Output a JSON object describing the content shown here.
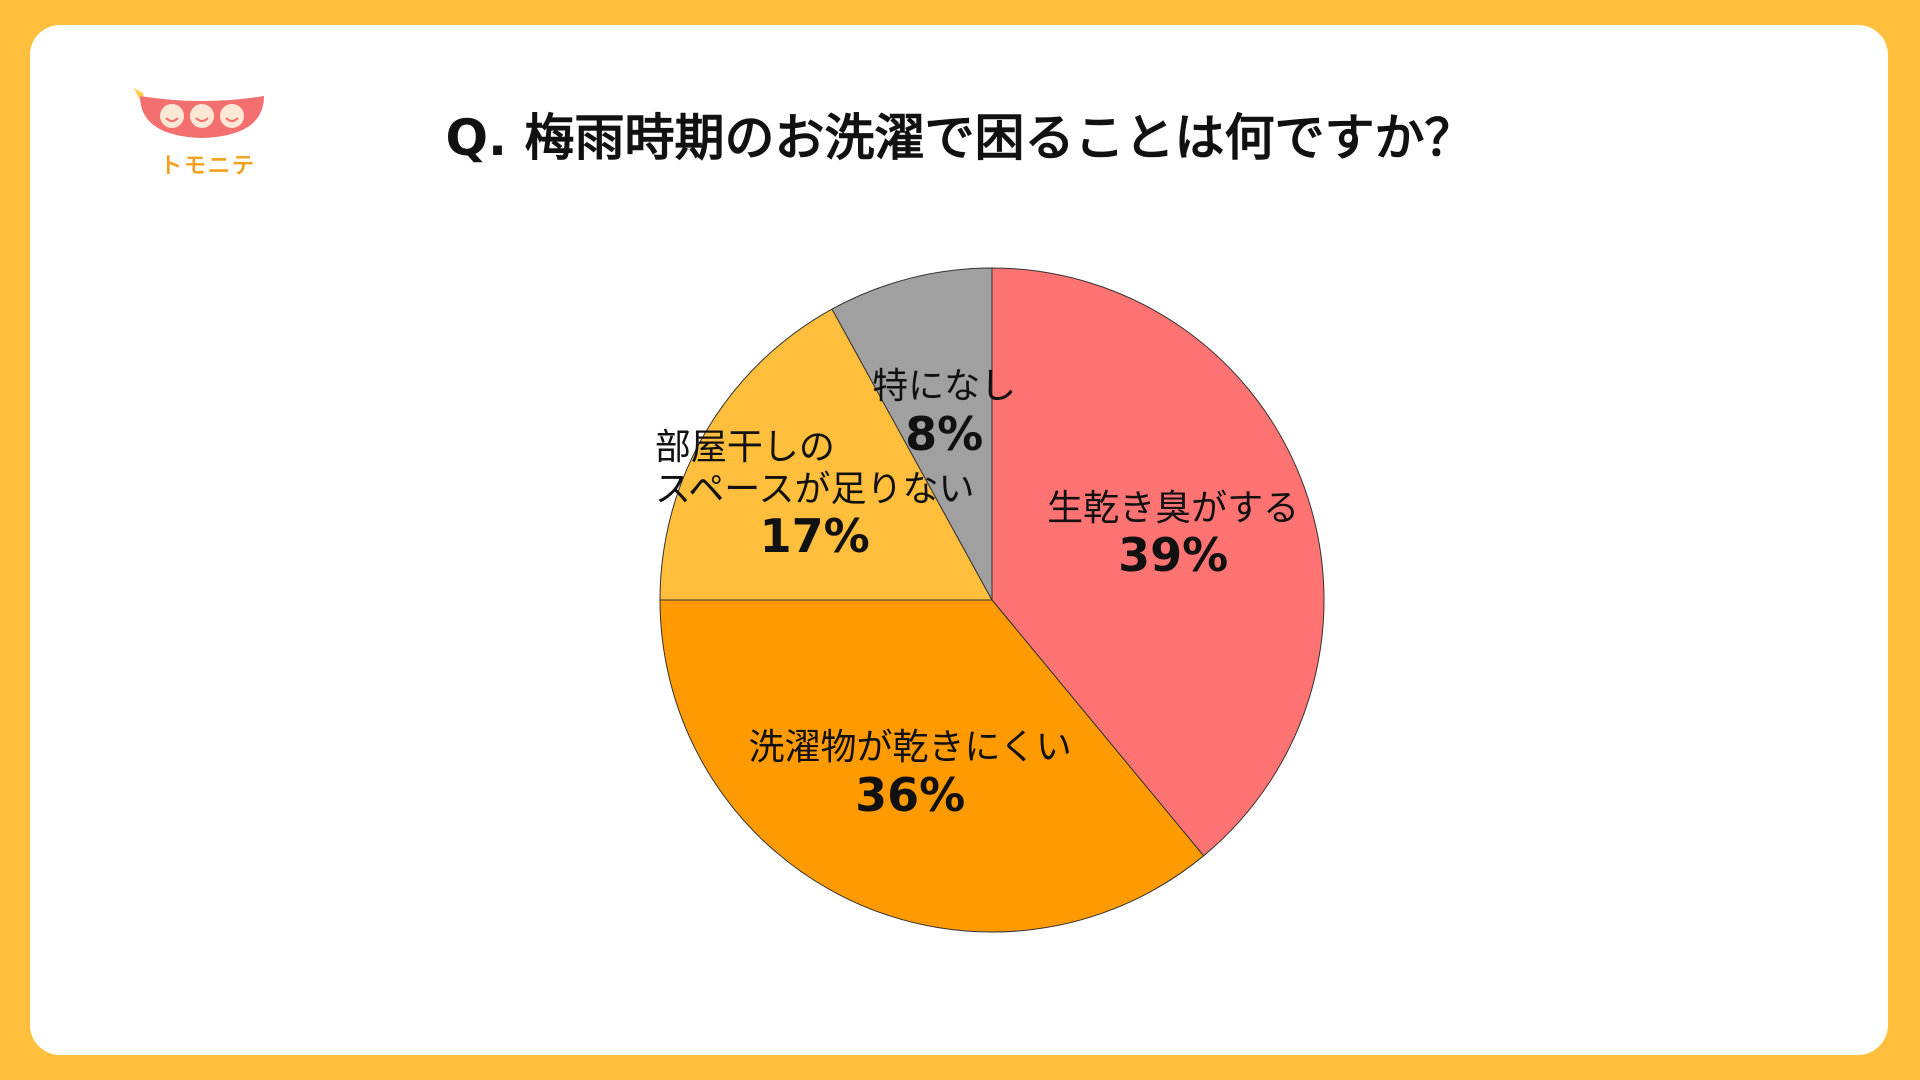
{
  "logo": {
    "text": "トモニテ",
    "icon": "smiling-bean-pod-logo",
    "color": "#F46F6F"
  },
  "title": "Q. 梅雨時期のお洗濯で困ることは何ですか？",
  "colors": {
    "background": "#FFBE3C",
    "card": "#FFFFFF"
  },
  "chart_data": {
    "type": "pie",
    "start_angle_deg": 0,
    "direction": "clockwise",
    "slices": [
      {
        "label": "生乾き臭がする",
        "value": 39,
        "display": "39%",
        "color": "#FF7373"
      },
      {
        "label": "洗濯物が乾きにくい",
        "value": 36,
        "display": "36%",
        "color": "#FF9A00"
      },
      {
        "label": "部屋干しの\nスペースが足りない",
        "value": 17,
        "display": "17%",
        "color": "#FFBE3C"
      },
      {
        "label": "特になし",
        "value": 8,
        "display": "8%",
        "color": "#A0A0A0"
      }
    ]
  }
}
